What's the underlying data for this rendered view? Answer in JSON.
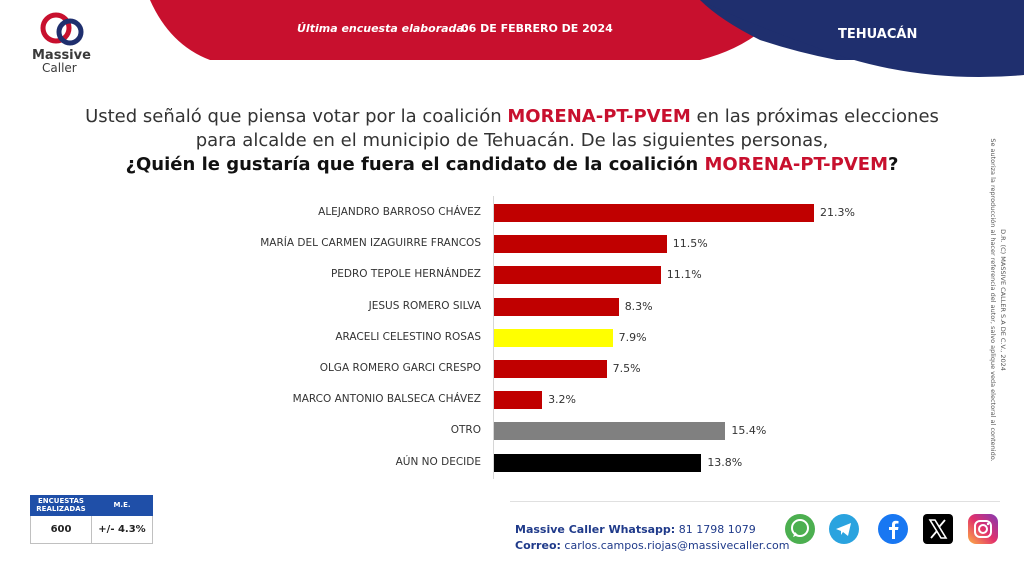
{
  "header": {
    "survey_label": "Última encuesta elaborada:",
    "survey_date": "06 DE FEBRERO DE 2024",
    "city": "TEHUACÁN"
  },
  "logo": {
    "line1": "Massive",
    "line2": "Caller"
  },
  "question": {
    "line1_pre": "Usted señaló que piensa votar por la coalición ",
    "line1_highlight": "MORENA-PT-PVEM",
    "line1_post": " en las próximas elecciones",
    "line2": "para alcalde en el municipio de Tehuacán.  De las siguientes personas,",
    "line3_pre": "¿Quién le gustaría que fuera el candidato de la coalición ",
    "line3_highlight": "MORENA-PT-PVEM",
    "line3_post": "?"
  },
  "chart_data": {
    "type": "bar",
    "orientation": "horizontal",
    "categories": [
      "ALEJANDRO BARROSO CHÁVEZ",
      "MARÍA DEL CARMEN IZAGUIRRE FRANCOS",
      "PEDRO TEPOLE HERNÁNDEZ",
      "JESUS ROMERO SILVA",
      "ARACELI CELESTINO ROSAS",
      "OLGA ROMERO GARCI CRESPO",
      "MARCO ANTONIO BALSECA CHÁVEZ",
      "OTRO",
      "AÚN NO DECIDE"
    ],
    "values": [
      21.3,
      11.5,
      11.1,
      8.3,
      7.9,
      7.5,
      3.2,
      15.4,
      13.8
    ],
    "value_labels": [
      "21.3%",
      "11.5%",
      "11.1%",
      "8.3%",
      "7.9%",
      "7.5%",
      "3.2%",
      "15.4%",
      "13.8%"
    ],
    "colors": [
      "#c00000",
      "#c00000",
      "#c00000",
      "#c00000",
      "#ffff00",
      "#c00000",
      "#c00000",
      "#808080",
      "#000000"
    ],
    "title": "",
    "xlabel": "",
    "ylabel": "",
    "xlim": [
      0,
      22
    ],
    "grid": false,
    "legend": "none"
  },
  "legal": {
    "line1": "D.R. (C) MASSIVE CALLER S.A DE C.V., 2024",
    "line2": "Se autoriza la reproducción al hacer referencia del autor, salvo aplique veda electoral al contenido."
  },
  "stats": {
    "col1_header": "ENCUESTAS REALIZADAS",
    "col2_header": "M.E.",
    "col1_value": "600",
    "col2_value": "+/- 4.3%"
  },
  "contact": {
    "whatsapp_label": "Massive Caller Whatsapp:",
    "whatsapp_number": "81 1798 1079",
    "email_label": "Correo:",
    "email": "carlos.campos.riojas@massivecaller.com"
  },
  "social_icons": [
    "whatsapp-icon",
    "telegram-icon",
    "facebook-icon",
    "x-icon",
    "instagram-icon"
  ]
}
